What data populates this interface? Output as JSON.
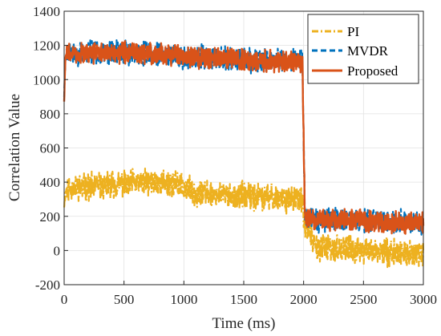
{
  "chart_data": {
    "type": "line",
    "xlabel": "Time (ms)",
    "ylabel": "Correlation Value",
    "xlim": [
      0,
      3000
    ],
    "ylim": [
      -200,
      1400
    ],
    "xticks": [
      0,
      500,
      1000,
      1500,
      2000,
      2500,
      3000
    ],
    "yticks": [
      -200,
      0,
      200,
      400,
      600,
      800,
      1000,
      1200,
      1400
    ],
    "grid": true,
    "legend_position": "top-right",
    "series": [
      {
        "name": "PI",
        "color": "#EDB120",
        "line_style": "dash-dot",
        "x": [
          0,
          10,
          20,
          100,
          200,
          300,
          400,
          500,
          600,
          700,
          800,
          900,
          1000,
          1100,
          1200,
          1300,
          1400,
          1500,
          1600,
          1700,
          1800,
          1900,
          1990,
          2000,
          2100,
          2200,
          2300,
          2400,
          2500,
          2600,
          2700,
          2800,
          2900,
          3000
        ],
        "values": [
          270,
          330,
          360,
          370,
          375,
          380,
          385,
          390,
          395,
          400,
          395,
          390,
          370,
          340,
          330,
          325,
          320,
          320,
          315,
          310,
          305,
          300,
          300,
          180,
          20,
          15,
          10,
          5,
          0,
          -5,
          -10,
          -15,
          -20,
          -25
        ],
        "noise_amplitude": 120
      },
      {
        "name": "MVDR",
        "color": "#0072BD",
        "line_style": "dashed",
        "x": [
          0,
          10,
          20,
          100,
          200,
          300,
          400,
          500,
          600,
          700,
          800,
          900,
          1000,
          1100,
          1200,
          1300,
          1400,
          1500,
          1600,
          1700,
          1800,
          1900,
          1980,
          1990,
          2000,
          2010,
          2100,
          2200,
          2300,
          2400,
          2500,
          2600,
          2700,
          2800,
          2900,
          3000
        ],
        "values": [
          900,
          1100,
          1150,
          1150,
          1155,
          1160,
          1160,
          1160,
          1160,
          1155,
          1150,
          1145,
          1140,
          1130,
          1125,
          1120,
          1120,
          1115,
          1110,
          1110,
          1110,
          1110,
          1110,
          1100,
          650,
          200,
          180,
          175,
          175,
          175,
          175,
          170,
          170,
          165,
          165,
          165
        ],
        "noise_amplitude": 110
      },
      {
        "name": "Proposed",
        "color": "#D95319",
        "line_style": "solid",
        "x": [
          0,
          10,
          20,
          100,
          200,
          300,
          400,
          500,
          600,
          700,
          800,
          900,
          1000,
          1100,
          1200,
          1300,
          1400,
          1500,
          1600,
          1700,
          1800,
          1900,
          1980,
          1990,
          2000,
          2010,
          2100,
          2200,
          2300,
          2400,
          2500,
          2600,
          2700,
          2800,
          2900,
          3000
        ],
        "values": [
          880,
          1120,
          1150,
          1150,
          1155,
          1160,
          1160,
          1160,
          1160,
          1155,
          1150,
          1145,
          1140,
          1130,
          1125,
          1120,
          1120,
          1115,
          1110,
          1110,
          1110,
          1110,
          1110,
          1100,
          650,
          200,
          180,
          175,
          175,
          175,
          175,
          170,
          170,
          165,
          165,
          165
        ],
        "noise_amplitude": 95
      }
    ]
  }
}
